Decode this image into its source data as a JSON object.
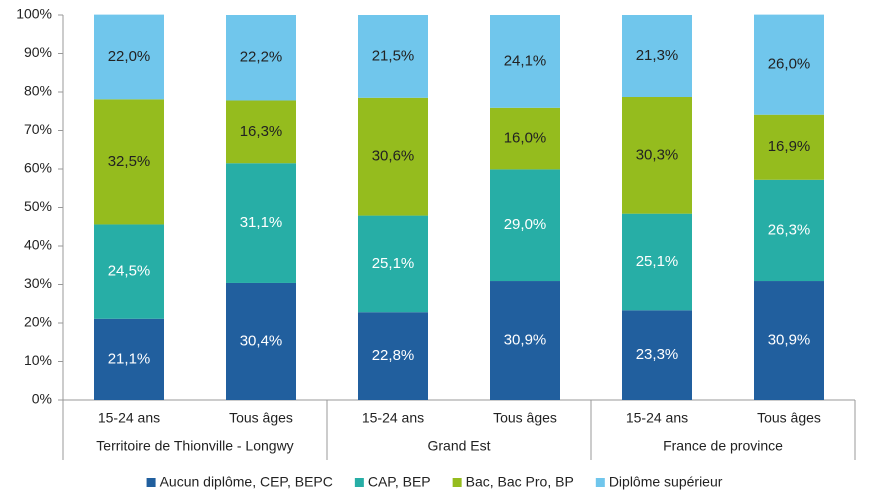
{
  "chart_data": {
    "type": "stacked_bar",
    "categories": [
      "15-24 ans",
      "Tous âges",
      "15-24 ans",
      "Tous âges",
      "15-24 ans",
      "Tous âges"
    ],
    "groups": [
      "Territoire de Thionville - Longwy",
      "Grand Est",
      "France de province"
    ],
    "series": [
      {
        "name": "Aucun diplôme, CEP, BEPC",
        "color": "#215f9e",
        "values": [
          21.1,
          30.4,
          22.8,
          30.9,
          23.3,
          30.9
        ],
        "value_labels": [
          "21,1%",
          "30,4%",
          "22,8%",
          "30,9%",
          "23,3%",
          "30,9%"
        ]
      },
      {
        "name": "CAP, BEP",
        "color": "#27aea6",
        "values": [
          24.5,
          31.1,
          25.1,
          29.0,
          25.1,
          26.3
        ],
        "value_labels": [
          "24,5%",
          "31,1%",
          "25,1%",
          "29,0%",
          "25,1%",
          "26,3%"
        ]
      },
      {
        "name": "Bac, Bac Pro, BP",
        "color": "#95bc1e",
        "values": [
          32.5,
          16.3,
          30.6,
          16.0,
          30.3,
          16.9
        ],
        "value_labels": [
          "32,5%",
          "16,3%",
          "30,6%",
          "16,0%",
          "30,3%",
          "16,9%"
        ]
      },
      {
        "name": "Diplôme supérieur",
        "color": "#70c6ec",
        "values": [
          22.0,
          22.2,
          21.5,
          24.1,
          21.3,
          26.0
        ],
        "value_labels": [
          "22,0%",
          "22,2%",
          "21,5%",
          "24,1%",
          "21,3%",
          "26,0%"
        ]
      }
    ],
    "ylim": [
      0,
      100
    ],
    "yticks": [
      {
        "value": 0,
        "label": "0%"
      },
      {
        "value": 10,
        "label": "10%"
      },
      {
        "value": 20,
        "label": "20%"
      },
      {
        "value": 30,
        "label": "30%"
      },
      {
        "value": 40,
        "label": "40%"
      },
      {
        "value": 50,
        "label": "50%"
      },
      {
        "value": 60,
        "label": "60%"
      },
      {
        "value": 70,
        "label": "70%"
      },
      {
        "value": 80,
        "label": "80%"
      },
      {
        "value": 90,
        "label": "90%"
      },
      {
        "value": 100,
        "label": "100%"
      }
    ],
    "legend": "bottom"
  }
}
